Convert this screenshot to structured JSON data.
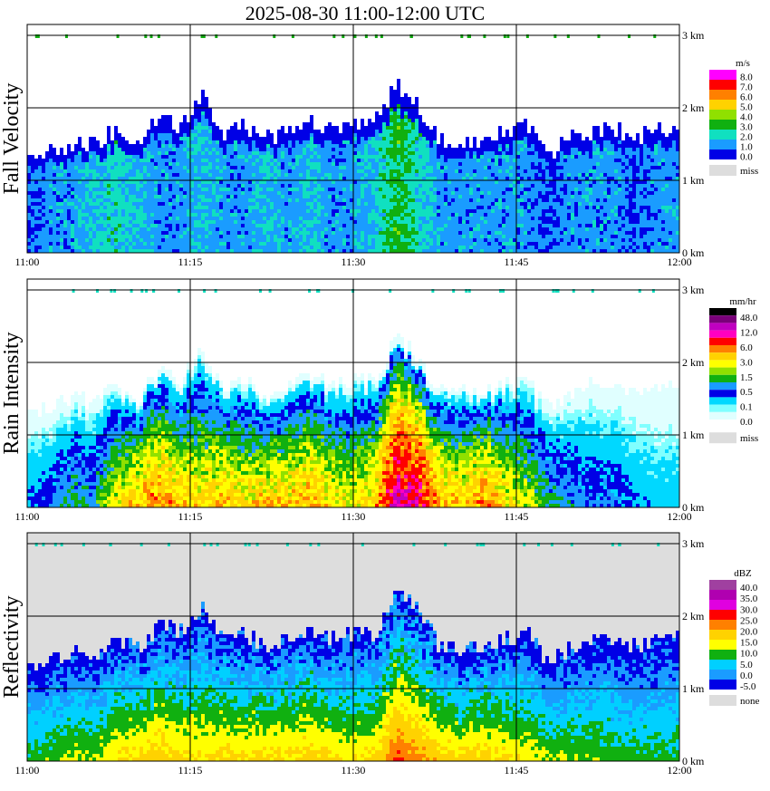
{
  "title": "2025-08-30   11:00-12:00 UTC",
  "x_ticks": [
    "11:00",
    "11:15",
    "11:30",
    "11:45",
    "12:00"
  ],
  "y_ticks": [
    "0 km",
    "1 km",
    "2 km",
    "3 km"
  ],
  "chart_data": [
    {
      "type": "heatmap",
      "ylabel": "Fall Velocity",
      "unit": "m/s",
      "legend_labels": [
        "8.0",
        "7.0",
        "6.0",
        "5.0",
        "4.0",
        "3.0",
        "2.0",
        "1.0",
        "0.0",
        "miss"
      ],
      "legend_colors": [
        "#ff00ff",
        "#ff0000",
        "#ff8000",
        "#ffd200",
        "#90e000",
        "#10b010",
        "#10e0c0",
        "#1a9cff",
        "#0000e6",
        "#dddddd"
      ],
      "background": "#ffffff",
      "echo_top_km": [
        1.3,
        1.4,
        1.55,
        1.5,
        1.7,
        1.55,
        1.9,
        1.8,
        2.2,
        1.7,
        1.8,
        1.6,
        1.7,
        1.85,
        1.7,
        1.8,
        1.8,
        2.35,
        2.1,
        1.6,
        1.6,
        1.6,
        1.7,
        1.8,
        1.4,
        1.6,
        1.7,
        1.75,
        1.6,
        1.7,
        1.7
      ],
      "dominant_values_ms": [
        1.0,
        1.5,
        1.5,
        2.0,
        2.5,
        2.0,
        1.5,
        1.5,
        2.0,
        1.5,
        1.5,
        2.0,
        1.5,
        2.0,
        1.5,
        1.5,
        2.0,
        3.5,
        2.5,
        1.5,
        1.5,
        1.5,
        1.5,
        1.5,
        1.0,
        1.5,
        1.5,
        1.5,
        1.0,
        1.5,
        1.5
      ]
    },
    {
      "type": "heatmap",
      "ylabel": "Rain Intensity",
      "unit": "mm/hr",
      "legend_labels": [
        "48.0",
        "12.0",
        "6.0",
        "3.0",
        "1.5",
        "0.5",
        "0.1",
        "0.0",
        "miss"
      ],
      "legend_colors": [
        "#000000",
        "#7a007a",
        "#c000c0",
        "#ff00c0",
        "#ff0000",
        "#ff8000",
        "#ffd200",
        "#ffff00",
        "#90e000",
        "#10b010",
        "#1a9cff",
        "#0000e6",
        "#00d8ff",
        "#80ffff",
        "#e0ffff",
        "#ffffff",
        "#dddddd"
      ],
      "background": "#ffffff",
      "echo_top_km": [
        1.3,
        1.4,
        1.55,
        1.5,
        1.7,
        1.55,
        1.9,
        1.8,
        2.2,
        1.7,
        1.8,
        1.6,
        1.7,
        1.85,
        1.7,
        1.8,
        1.8,
        2.35,
        2.1,
        1.6,
        1.6,
        1.6,
        1.7,
        1.8,
        1.4,
        1.6,
        1.7,
        1.75,
        1.6,
        1.7,
        1.7
      ],
      "low_level_mmhr": [
        0.3,
        0.5,
        1.0,
        0.8,
        2.5,
        4.0,
        5.0,
        3.5,
        3.0,
        4.0,
        3.0,
        4.0,
        3.5,
        4.5,
        3.0,
        2.5,
        3.5,
        12.0,
        10.0,
        4.0,
        3.5,
        5.0,
        3.0,
        2.0,
        1.0,
        0.8,
        0.5,
        0.5,
        0.3,
        0.2,
        0.2
      ]
    },
    {
      "type": "heatmap",
      "ylabel": "Reflectivity",
      "unit": "dBZ",
      "legend_labels": [
        "40.0",
        "35.0",
        "30.0",
        "25.0",
        "20.0",
        "15.0",
        "10.0",
        "5.0",
        "0.0",
        "-5.0",
        "none"
      ],
      "legend_colors": [
        "#a040a0",
        "#b000b0",
        "#e000e0",
        "#ff0000",
        "#ff8000",
        "#ffd200",
        "#ffff00",
        "#10b010",
        "#00d0ff",
        "#1a9cff",
        "#0000e6",
        "#dddddd"
      ],
      "background": "#dddddd",
      "echo_top_km": [
        1.3,
        1.4,
        1.55,
        1.5,
        1.7,
        1.55,
        1.9,
        1.8,
        2.2,
        1.7,
        1.8,
        1.6,
        1.7,
        1.85,
        1.7,
        1.8,
        1.8,
        2.35,
        2.1,
        1.6,
        1.6,
        1.6,
        1.7,
        1.8,
        1.4,
        1.6,
        1.7,
        1.75,
        1.6,
        1.7,
        1.7
      ],
      "low_level_dbz": [
        12,
        14,
        16,
        15,
        20,
        22,
        24,
        21,
        20,
        22,
        20,
        22,
        21,
        23,
        20,
        19,
        21,
        30,
        27,
        22,
        21,
        23,
        20,
        18,
        15,
        15,
        14,
        13,
        12,
        12,
        12
      ]
    }
  ]
}
